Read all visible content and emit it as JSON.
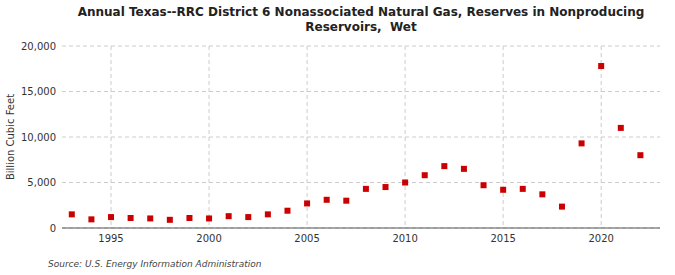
{
  "chart_data": {
    "type": "scatter",
    "title": "Annual Texas--RRC District 6 Nonassociated Natural Gas, Reserves in Nonproducing\nReservoirs,  Wet",
    "y_label": "Billion Cubic Feet",
    "source": "Source: U.S. Energy Information Administration",
    "color": "#cc0000",
    "marker": "square",
    "grid": true,
    "x": [
      1993,
      1994,
      1995,
      1996,
      1997,
      1998,
      1999,
      2000,
      2001,
      2002,
      2003,
      2004,
      2005,
      2006,
      2007,
      2008,
      2009,
      2010,
      2011,
      2012,
      2013,
      2014,
      2015,
      2016,
      2017,
      2018,
      2019,
      2020,
      2021,
      2022
    ],
    "values": [
      1500,
      950,
      1200,
      1100,
      1050,
      900,
      1100,
      1050,
      1300,
      1200,
      1500,
      1900,
      2700,
      3100,
      3000,
      4300,
      4500,
      5000,
      5800,
      6800,
      6500,
      4700,
      4200,
      4300,
      3700,
      2350,
      9300,
      17800,
      11000,
      8000
    ],
    "xlim": [
      1992.5,
      2023
    ],
    "ylim": [
      0,
      20000
    ],
    "xticks": [
      1995,
      2000,
      2005,
      2010,
      2015,
      2020
    ],
    "yticks": [
      0,
      {
        "value": 5000,
        "label": "5,000"
      },
      {
        "value": 10000,
        "label": "10,000"
      },
      {
        "value": 15000,
        "label": "15,000"
      },
      {
        "value": 20000,
        "label": "20,000"
      }
    ]
  }
}
